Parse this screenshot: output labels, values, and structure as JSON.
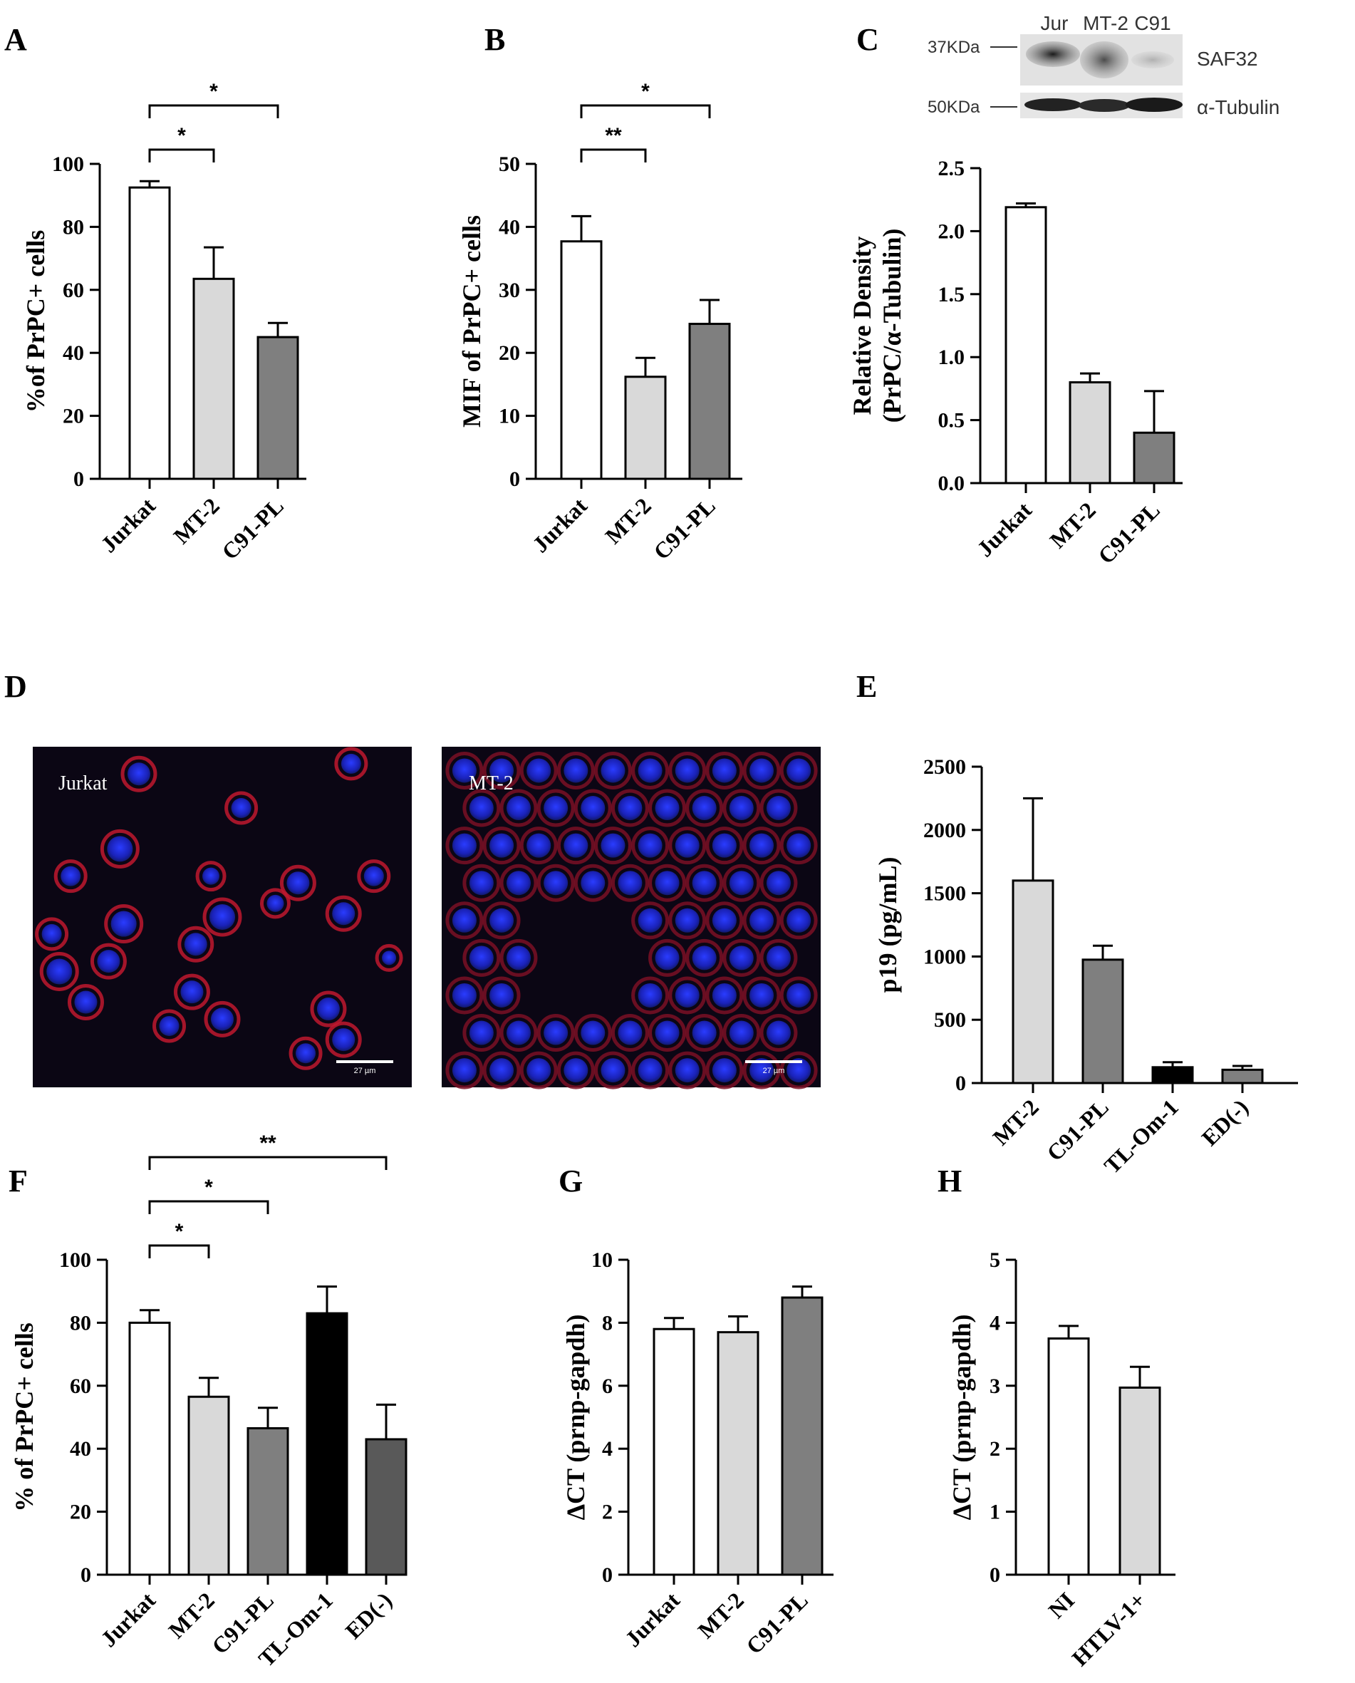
{
  "panels": {
    "A": {
      "label": "A"
    },
    "B": {
      "label": "B"
    },
    "C": {
      "label": "C"
    },
    "D": {
      "label": "D"
    },
    "E": {
      "label": "E"
    },
    "F": {
      "label": "F"
    },
    "G": {
      "label": "G"
    },
    "H": {
      "label": "H"
    }
  },
  "blot": {
    "lanes": [
      "Jur",
      "MT-2",
      "C91"
    ],
    "rows": [
      {
        "marker": "37KDa",
        "antibody": "SAF32"
      },
      {
        "marker": "50KDa",
        "antibody": "α-Tubulin"
      }
    ]
  },
  "microscopy": {
    "images": [
      {
        "label": "Jurkat",
        "scale": "27 µm"
      },
      {
        "label": "MT-2",
        "scale": "27 µm"
      }
    ]
  },
  "chart_data": [
    {
      "panel": "A",
      "type": "bar",
      "categories": [
        "Jurkat",
        "MT-2",
        "C91-PL"
      ],
      "values": [
        92.5,
        63.5,
        45
      ],
      "errors": [
        2,
        10,
        4.5
      ],
      "ylabel": "%of PrPC+ cells",
      "ylim": [
        0,
        100
      ],
      "yticks": [
        "0",
        "20",
        "40",
        "60",
        "80",
        "100"
      ],
      "fills": [
        "#ffffff",
        "#d9d9d9",
        "#7f7f7f"
      ],
      "significance": [
        {
          "from": 0,
          "to": 1,
          "label": "*"
        },
        {
          "from": 0,
          "to": 2,
          "label": "*"
        }
      ]
    },
    {
      "panel": "B",
      "type": "bar",
      "categories": [
        "Jurkat",
        "MT-2",
        "C91-PL"
      ],
      "values": [
        37.7,
        16.2,
        24.6
      ],
      "errors": [
        4,
        3,
        3.8
      ],
      "ylabel": "MIF of PrPC+ cells",
      "ylim": [
        0,
        50
      ],
      "yticks": [
        "0",
        "10",
        "20",
        "30",
        "40",
        "50"
      ],
      "fills": [
        "#ffffff",
        "#d9d9d9",
        "#7f7f7f"
      ],
      "significance": [
        {
          "from": 0,
          "to": 1,
          "label": "**"
        },
        {
          "from": 0,
          "to": 2,
          "label": "*"
        }
      ]
    },
    {
      "panel": "C",
      "type": "bar",
      "categories": [
        "Jurkat",
        "MT-2",
        "C91-PL"
      ],
      "values": [
        2.19,
        0.8,
        0.4
      ],
      "errors": [
        0.03,
        0.07,
        0.33
      ],
      "ylabel_line1": "Relative Density",
      "ylabel_line2": "(PrPC/α-Tubulin)",
      "ylim": [
        0,
        2.5
      ],
      "yticks": [
        "0.0",
        "0.5",
        "1.0",
        "1.5",
        "2.0",
        "2.5"
      ],
      "fills": [
        "#ffffff",
        "#d9d9d9",
        "#7f7f7f"
      ],
      "significance": []
    },
    {
      "panel": "E",
      "type": "bar",
      "categories": [
        "MT-2",
        "C91-PL",
        "TL-Om-1",
        "ED(-)"
      ],
      "values": [
        1600,
        975,
        125,
        105
      ],
      "errors": [
        650,
        110,
        40,
        30
      ],
      "ylabel": "p19 (pg/mL)",
      "ylim": [
        0,
        2500
      ],
      "yticks": [
        "0",
        "500",
        "1000",
        "1500",
        "2000",
        "2500"
      ],
      "fills": [
        "#d9d9d9",
        "#7f7f7f",
        "#000000",
        "#7f7f7f"
      ],
      "significance": []
    },
    {
      "panel": "F",
      "type": "bar",
      "categories": [
        "Jurkat",
        "MT-2",
        "C91-PL",
        "TL-Om-1",
        "ED(-)"
      ],
      "values": [
        80,
        56.5,
        46.5,
        83,
        43
      ],
      "errors": [
        4,
        6,
        6.5,
        8.5,
        11
      ],
      "ylabel": "% of PrPC+ cells",
      "ylim": [
        0,
        100
      ],
      "yticks": [
        "0",
        "20",
        "40",
        "60",
        "80",
        "100"
      ],
      "fills": [
        "#ffffff",
        "#d9d9d9",
        "#7f7f7f",
        "#000000",
        "#595959"
      ],
      "significance": [
        {
          "from": 0,
          "to": 1,
          "label": "*"
        },
        {
          "from": 0,
          "to": 2,
          "label": "*"
        },
        {
          "from": 0,
          "to": 4,
          "label": "**"
        }
      ]
    },
    {
      "panel": "G",
      "type": "bar",
      "categories": [
        "Jurkat",
        "MT-2",
        "C91-PL"
      ],
      "values": [
        7.8,
        7.7,
        8.8
      ],
      "errors": [
        0.35,
        0.5,
        0.35
      ],
      "ylabel": "ΔCT (prnp-gapdh)",
      "ylim": [
        0,
        10
      ],
      "yticks": [
        "0",
        "2",
        "4",
        "6",
        "8",
        "10"
      ],
      "fills": [
        "#ffffff",
        "#d9d9d9",
        "#7f7f7f"
      ],
      "significance": []
    },
    {
      "panel": "H",
      "type": "bar",
      "categories": [
        "NI",
        "HTLV-1+"
      ],
      "values": [
        3.75,
        2.97
      ],
      "errors": [
        0.2,
        0.33
      ],
      "ylabel": "ΔCT (prnp-gapdh)",
      "ylim": [
        0,
        5
      ],
      "yticks": [
        "0",
        "1",
        "2",
        "3",
        "4",
        "5"
      ],
      "fills": [
        "#ffffff",
        "#d9d9d9"
      ],
      "significance": []
    }
  ]
}
